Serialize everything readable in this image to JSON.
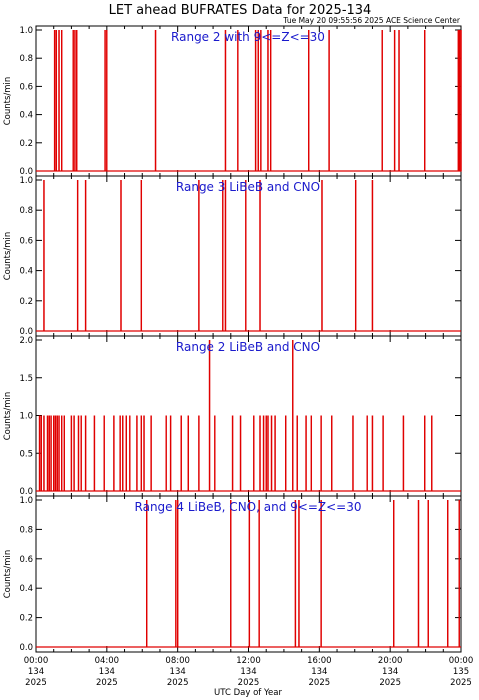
{
  "title": "LET ahead BUFRATES Data for 2025-134",
  "timestamp": "Tue May 20 09:55:56 2025 ACE Science Center",
  "xlabel": "UTC Day of Year",
  "line_color": "#e00000",
  "label_color": "#1a1acc",
  "x_ticks": [
    {
      "time": "00:00",
      "doy": "134",
      "year": "2025"
    },
    {
      "time": "04:00",
      "doy": "134",
      "year": "2025"
    },
    {
      "time": "08:00",
      "doy": "134",
      "year": "2025"
    },
    {
      "time": "12:00",
      "doy": "134",
      "year": "2025"
    },
    {
      "time": "16:00",
      "doy": "134",
      "year": "2025"
    },
    {
      "time": "20:00",
      "doy": "134",
      "year": "2025"
    },
    {
      "time": "00:00",
      "doy": "135",
      "year": "2025"
    }
  ],
  "chart_data": [
    {
      "type": "line",
      "label": "Range 2 with 9<=Z<=30",
      "ylabel": "Counts/min",
      "xlim": [
        0,
        24
      ],
      "ylim": [
        0,
        1.0
      ],
      "yticks": [
        "0.0",
        "0.2",
        "0.4",
        "0.6",
        "0.8",
        "1.0"
      ],
      "spikes": [
        {
          "hour": 1.05,
          "value": 1
        },
        {
          "hour": 1.15,
          "value": 1
        },
        {
          "hour": 1.3,
          "value": 1
        },
        {
          "hour": 1.45,
          "value": 1
        },
        {
          "hour": 2.1,
          "value": 1
        },
        {
          "hour": 2.2,
          "value": 1
        },
        {
          "hour": 2.3,
          "value": 1
        },
        {
          "hour": 3.9,
          "value": 1
        },
        {
          "hour": 4.0,
          "value": 1
        },
        {
          "hour": 6.75,
          "value": 1
        },
        {
          "hour": 10.7,
          "value": 1
        },
        {
          "hour": 11.4,
          "value": 1
        },
        {
          "hour": 12.4,
          "value": 1
        },
        {
          "hour": 12.55,
          "value": 1
        },
        {
          "hour": 12.7,
          "value": 1
        },
        {
          "hour": 13.1,
          "value": 1
        },
        {
          "hour": 13.25,
          "value": 1
        },
        {
          "hour": 15.4,
          "value": 1
        },
        {
          "hour": 16.55,
          "value": 1
        },
        {
          "hour": 19.55,
          "value": 1
        },
        {
          "hour": 20.25,
          "value": 1
        },
        {
          "hour": 20.5,
          "value": 1
        },
        {
          "hour": 21.95,
          "value": 1
        },
        {
          "hour": 23.85,
          "value": 1
        },
        {
          "hour": 23.92,
          "value": 1
        },
        {
          "hour": 24.0,
          "value": 1
        }
      ]
    },
    {
      "type": "line",
      "label": "Range 3 LiBeB and CNO",
      "ylabel": "Counts/min",
      "xlim": [
        0,
        24
      ],
      "ylim": [
        0,
        1.0
      ],
      "yticks": [
        "0.0",
        "0.2",
        "0.4",
        "0.6",
        "0.8",
        "1.0"
      ],
      "spikes": [
        {
          "hour": 0.45,
          "value": 1
        },
        {
          "hour": 2.35,
          "value": 1
        },
        {
          "hour": 2.8,
          "value": 1
        },
        {
          "hour": 4.8,
          "value": 1
        },
        {
          "hour": 5.95,
          "value": 1
        },
        {
          "hour": 9.2,
          "value": 1
        },
        {
          "hour": 10.55,
          "value": 1
        },
        {
          "hour": 10.7,
          "value": 1
        },
        {
          "hour": 11.85,
          "value": 1
        },
        {
          "hour": 12.65,
          "value": 1
        },
        {
          "hour": 16.15,
          "value": 1
        },
        {
          "hour": 18.05,
          "value": 1
        },
        {
          "hour": 19.0,
          "value": 1
        }
      ]
    },
    {
      "type": "line",
      "label": "Range 2 LiBeB and CNO",
      "ylabel": "Counts/min",
      "xlim": [
        0,
        24
      ],
      "ylim": [
        0,
        2.0
      ],
      "yticks": [
        "0.0",
        "0.5",
        "1.0",
        "1.5",
        "2.0"
      ],
      "spikes": [
        {
          "hour": 0.2,
          "value": 1
        },
        {
          "hour": 0.3,
          "value": 1
        },
        {
          "hour": 0.45,
          "value": 1
        },
        {
          "hour": 0.65,
          "value": 1
        },
        {
          "hour": 0.75,
          "value": 1
        },
        {
          "hour": 0.85,
          "value": 1
        },
        {
          "hour": 1.0,
          "value": 1
        },
        {
          "hour": 1.1,
          "value": 1
        },
        {
          "hour": 1.2,
          "value": 1
        },
        {
          "hour": 1.3,
          "value": 1
        },
        {
          "hour": 1.45,
          "value": 1
        },
        {
          "hour": 1.6,
          "value": 1
        },
        {
          "hour": 2.0,
          "value": 1
        },
        {
          "hour": 2.15,
          "value": 1
        },
        {
          "hour": 2.4,
          "value": 1
        },
        {
          "hour": 2.55,
          "value": 1
        },
        {
          "hour": 2.8,
          "value": 1
        },
        {
          "hour": 3.3,
          "value": 1
        },
        {
          "hour": 3.85,
          "value": 1
        },
        {
          "hour": 4.4,
          "value": 1
        },
        {
          "hour": 4.75,
          "value": 1
        },
        {
          "hour": 4.9,
          "value": 1
        },
        {
          "hour": 5.1,
          "value": 1
        },
        {
          "hour": 5.3,
          "value": 1
        },
        {
          "hour": 5.7,
          "value": 1
        },
        {
          "hour": 5.95,
          "value": 1
        },
        {
          "hour": 6.1,
          "value": 1
        },
        {
          "hour": 6.5,
          "value": 1
        },
        {
          "hour": 7.35,
          "value": 1
        },
        {
          "hour": 7.6,
          "value": 1
        },
        {
          "hour": 8.2,
          "value": 1
        },
        {
          "hour": 8.6,
          "value": 1
        },
        {
          "hour": 9.2,
          "value": 1
        },
        {
          "hour": 9.8,
          "value": 2
        },
        {
          "hour": 10.1,
          "value": 1
        },
        {
          "hour": 11.1,
          "value": 1
        },
        {
          "hour": 11.55,
          "value": 1
        },
        {
          "hour": 12.3,
          "value": 1
        },
        {
          "hour": 12.65,
          "value": 1
        },
        {
          "hour": 12.85,
          "value": 1
        },
        {
          "hour": 13.0,
          "value": 1
        },
        {
          "hour": 13.1,
          "value": 1
        },
        {
          "hour": 13.3,
          "value": 1
        },
        {
          "hour": 13.5,
          "value": 1
        },
        {
          "hour": 14.1,
          "value": 1
        },
        {
          "hour": 14.5,
          "value": 2
        },
        {
          "hour": 14.75,
          "value": 1
        },
        {
          "hour": 15.25,
          "value": 1
        },
        {
          "hour": 15.55,
          "value": 1
        },
        {
          "hour": 16.1,
          "value": 1
        },
        {
          "hour": 16.7,
          "value": 1
        },
        {
          "hour": 17.9,
          "value": 1
        },
        {
          "hour": 18.7,
          "value": 1
        },
        {
          "hour": 19.0,
          "value": 1
        },
        {
          "hour": 19.6,
          "value": 1
        },
        {
          "hour": 20.75,
          "value": 1
        },
        {
          "hour": 21.95,
          "value": 1
        },
        {
          "hour": 22.35,
          "value": 1
        }
      ]
    },
    {
      "type": "line",
      "label": "Range 4 LiBeB, CNO, and 9<=Z<=30",
      "ylabel": "Counts/min",
      "xlim": [
        0,
        24
      ],
      "ylim": [
        0,
        1.0
      ],
      "yticks": [
        "0.0",
        "0.2",
        "0.4",
        "0.6",
        "0.8",
        "1.0"
      ],
      "spikes": [
        {
          "hour": 6.25,
          "value": 1
        },
        {
          "hour": 7.9,
          "value": 1
        },
        {
          "hour": 8.0,
          "value": 1
        },
        {
          "hour": 11.0,
          "value": 1
        },
        {
          "hour": 12.05,
          "value": 1
        },
        {
          "hour": 12.6,
          "value": 1
        },
        {
          "hour": 14.65,
          "value": 1
        },
        {
          "hour": 14.85,
          "value": 1
        },
        {
          "hour": 16.1,
          "value": 1
        },
        {
          "hour": 20.2,
          "value": 1
        },
        {
          "hour": 21.6,
          "value": 1
        },
        {
          "hour": 22.15,
          "value": 1
        },
        {
          "hour": 23.25,
          "value": 1
        },
        {
          "hour": 23.9,
          "value": 1
        }
      ]
    }
  ]
}
